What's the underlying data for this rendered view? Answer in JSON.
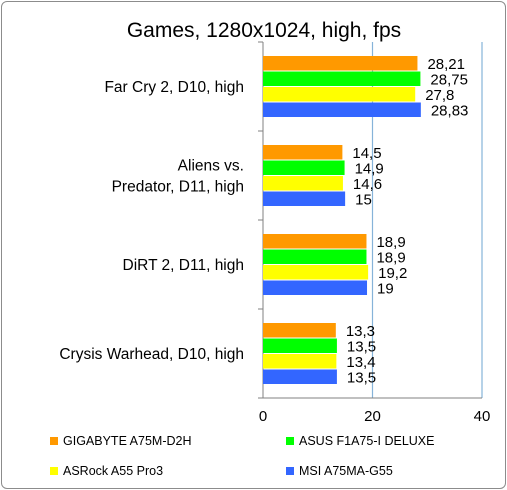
{
  "chart_data": {
    "type": "bar",
    "orientation": "horizontal",
    "title": "Games, 1280x1024, high, fps",
    "categories": [
      [
        "Far Cry 2, D10, high"
      ],
      [
        "Aliens vs.",
        "Predator, D11, high"
      ],
      [
        "DiRT 2, D11, high"
      ],
      [
        "Crysis Warhead, D10, high"
      ]
    ],
    "series": [
      {
        "name": "GIGABYTE A75M-D2H",
        "color": "#ff9900",
        "values": [
          28.21,
          14.5,
          18.9,
          13.3
        ],
        "labels": [
          "28,21",
          "14,5",
          "18,9",
          "13,3"
        ]
      },
      {
        "name": "ASUS F1A75-I DELUXE",
        "color": "#00ff00",
        "values": [
          28.75,
          14.9,
          18.9,
          13.5
        ],
        "labels": [
          "28,75",
          "14,9",
          "18,9",
          "13,5"
        ]
      },
      {
        "name": "ASRock A55 Pro3",
        "color": "#ffff00",
        "values": [
          27.8,
          14.6,
          19.2,
          13.4
        ],
        "labels": [
          "27,8",
          "14,6",
          "19,2",
          "13,4"
        ]
      },
      {
        "name": "MSI A75MA-G55",
        "color": "#3366ff",
        "values": [
          28.83,
          15,
          19,
          13.5
        ],
        "labels": [
          "28,83",
          "15",
          "19",
          "13,5"
        ]
      }
    ],
    "xlim": [
      0,
      40
    ],
    "xticks": [
      0,
      20,
      40
    ],
    "xtick_labels": [
      "0",
      "20",
      "40"
    ],
    "grid": true,
    "legend": "bottom"
  }
}
